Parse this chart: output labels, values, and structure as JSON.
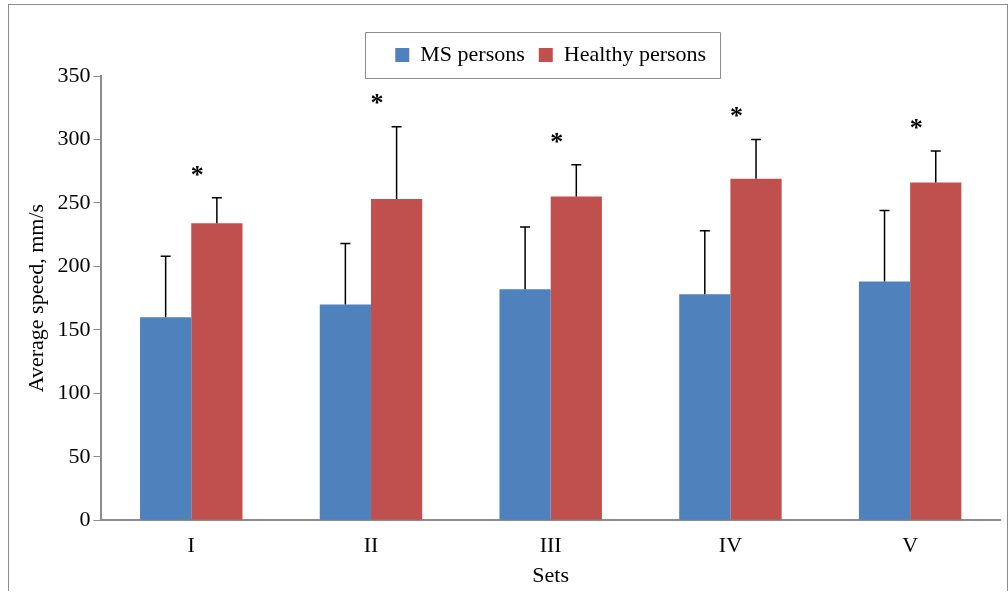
{
  "chart_data": {
    "type": "bar",
    "xlabel": "Sets",
    "ylabel": "Average speed, mm/s",
    "categories": [
      "I",
      "II",
      "III",
      "IV",
      "V"
    ],
    "series": [
      {
        "name": "MS persons",
        "color": "#4f81bd",
        "values": [
          160,
          170,
          182,
          178,
          188
        ],
        "errors": [
          [
            160,
            208
          ],
          [
            170,
            218
          ],
          [
            182,
            231
          ],
          [
            178,
            228
          ],
          [
            188,
            244
          ]
        ]
      },
      {
        "name": "Healthy persons",
        "color": "#c0504d",
        "values": [
          234,
          253,
          255,
          269,
          266
        ],
        "errors": [
          [
            234,
            254
          ],
          [
            253,
            310
          ],
          [
            255,
            280
          ],
          [
            269,
            300
          ],
          [
            266,
            291
          ]
        ]
      }
    ],
    "ylim": [
      0,
      350
    ],
    "yticks": [
      0,
      50,
      100,
      150,
      200,
      250,
      300,
      350
    ],
    "grid": false,
    "legend": "top",
    "annotations": [
      "*",
      "*",
      "*",
      "*",
      "*"
    ]
  }
}
